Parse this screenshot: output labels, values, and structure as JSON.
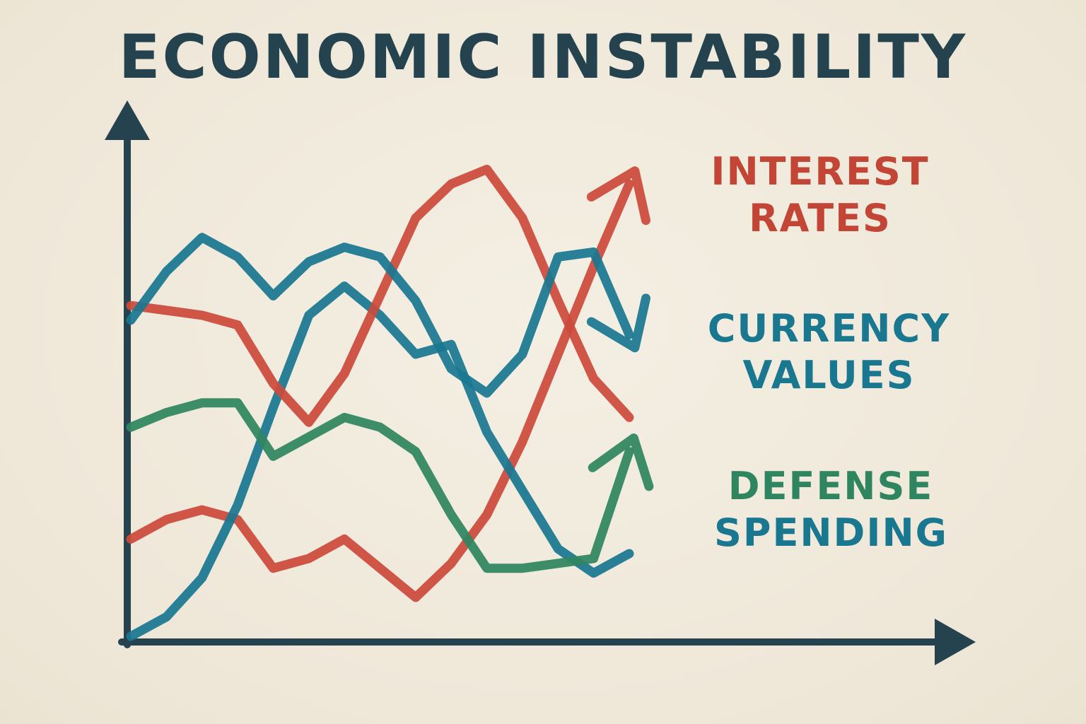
{
  "chart_data": {
    "type": "line",
    "title": "ECONOMIC INSTABILITY",
    "xlabel": "",
    "ylabel": "",
    "grid": false,
    "legend_placement": "right",
    "x": [
      0,
      1,
      2,
      3,
      4,
      5,
      6,
      7,
      8,
      9,
      10,
      11,
      12,
      13,
      14
    ],
    "ylim": [
      0,
      100
    ],
    "series": [
      {
        "name": "INTEREST RATES",
        "color": "#cc4a3b",
        "values": [
          68,
          67,
          66,
          64,
          52,
          44,
          54,
          70,
          86,
          93,
          96,
          86,
          69,
          53,
          45
        ]
      },
      {
        "name": "CURRENCY VALUES",
        "color": "#1a7790",
        "values": [
          65,
          75,
          82,
          78,
          70,
          77,
          80,
          78,
          69,
          55,
          50,
          58,
          78,
          79,
          62
        ]
      },
      {
        "name": "DEFENSE SPENDING",
        "color": "#2f8560",
        "values": [
          43,
          46,
          48,
          48,
          37,
          41,
          45,
          43,
          38,
          25,
          14,
          14,
          15,
          16,
          38
        ]
      }
    ],
    "extra_lines": [
      {
        "color": "#cc4a3b",
        "values": [
          20,
          24,
          26,
          24,
          14,
          16,
          20,
          14,
          8,
          15,
          25,
          40,
          58,
          76,
          93
        ]
      },
      {
        "color": "#1a7790",
        "values": [
          0,
          4,
          12,
          27,
          47,
          66,
          72,
          66,
          58,
          60,
          42,
          30,
          18,
          13,
          17
        ]
      }
    ]
  },
  "legend": [
    {
      "lines": [
        "INTEREST",
        "RATES"
      ],
      "color": "#c24535"
    },
    {
      "lines": [
        "CURRENCY",
        "VALUES"
      ],
      "color": "#1a7790"
    },
    {
      "lines": [
        "DEFENSE"
      ],
      "color": "#2f8560",
      "continuation": [
        "SPENDING"
      ],
      "continuation_color": "#1a7790"
    }
  ],
  "axis_color": "#24434f"
}
